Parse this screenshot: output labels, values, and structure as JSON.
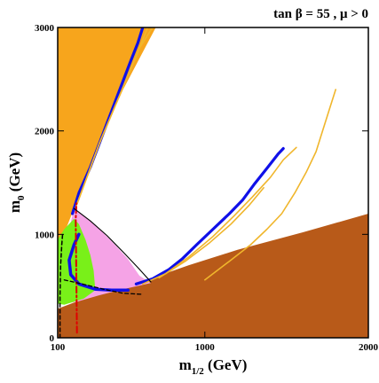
{
  "chart_data": {
    "type": "area",
    "title": "tan β = 55 ,  μ > 0",
    "xlabel": {
      "main": "m",
      "sub": "1/2",
      "unit": " (GeV)"
    },
    "ylabel": {
      "main": "m",
      "sub": "0",
      "unit": " (GeV)"
    },
    "xlim": [
      100,
      2000
    ],
    "ylim": [
      0,
      3000
    ],
    "x_ticks": [
      100,
      1000,
      2000
    ],
    "y_ticks": [
      0,
      1000,
      2000,
      3000
    ],
    "grid": false,
    "legend": "none",
    "colors": {
      "orange": "#f7a51c",
      "brown": "#b85a19",
      "pink": "#f5a3e6",
      "green": "#79f019",
      "blue": "#1010e8",
      "gold": "#f0b62c",
      "red": "#e00000",
      "black": "#000000"
    },
    "regions": [
      {
        "id": "orange",
        "color_key": "orange",
        "points": [
          [
            100,
            3000
          ],
          [
            700,
            3000
          ],
          [
            600,
            2700
          ],
          [
            500,
            2400
          ],
          [
            400,
            2050
          ],
          [
            320,
            1750
          ],
          [
            260,
            1500
          ],
          [
            200,
            1250
          ],
          [
            150,
            1050
          ],
          [
            100,
            900
          ]
        ]
      },
      {
        "id": "brown",
        "color_key": "brown",
        "points": [
          [
            100,
            0
          ],
          [
            2000,
            0
          ],
          [
            2000,
            1200
          ],
          [
            1600,
            1020
          ],
          [
            1200,
            850
          ],
          [
            900,
            700
          ],
          [
            700,
            590
          ],
          [
            500,
            500
          ],
          [
            350,
            420
          ],
          [
            200,
            340
          ],
          [
            100,
            280
          ]
        ]
      },
      {
        "id": "pink",
        "color_key": "pink",
        "points": [
          [
            200,
            1250
          ],
          [
            260,
            1180
          ],
          [
            350,
            1060
          ],
          [
            450,
            900
          ],
          [
            530,
            760
          ],
          [
            600,
            600
          ],
          [
            670,
            530
          ],
          [
            500,
            470
          ],
          [
            350,
            410
          ],
          [
            220,
            350
          ],
          [
            150,
            330
          ],
          [
            140,
            700
          ],
          [
            170,
            1050
          ]
        ]
      },
      {
        "id": "green",
        "color_key": "green",
        "points": [
          [
            100,
            950
          ],
          [
            140,
            1050
          ],
          [
            200,
            1150
          ],
          [
            230,
            1100
          ],
          [
            270,
            950
          ],
          [
            300,
            800
          ],
          [
            320,
            650
          ],
          [
            330,
            460
          ],
          [
            260,
            380
          ],
          [
            200,
            350
          ],
          [
            140,
            320
          ],
          [
            100,
            330
          ]
        ]
      }
    ],
    "lines": [
      {
        "id": "blue-strip-upper",
        "color_key": "blue",
        "width": 3.2,
        "points": [
          [
            190,
            1200
          ],
          [
            230,
            1400
          ],
          [
            300,
            1650
          ],
          [
            360,
            1900
          ],
          [
            420,
            2150
          ],
          [
            480,
            2400
          ],
          [
            540,
            2650
          ],
          [
            590,
            2850
          ],
          [
            620,
            3000
          ]
        ]
      },
      {
        "id": "blue-strip-lower",
        "color_key": "blue",
        "width": 3.2,
        "points": [
          [
            580,
            520
          ],
          [
            680,
            570
          ],
          [
            780,
            660
          ],
          [
            860,
            760
          ],
          [
            950,
            900
          ],
          [
            1050,
            1050
          ],
          [
            1150,
            1200
          ],
          [
            1230,
            1330
          ],
          [
            1300,
            1480
          ],
          [
            1380,
            1640
          ],
          [
            1450,
            1780
          ],
          [
            1480,
            1830
          ]
        ]
      },
      {
        "id": "blue-funnel-inner",
        "color_key": "blue",
        "width": 3.5,
        "points": [
          [
            230,
            1000
          ],
          [
            200,
            900
          ],
          [
            170,
            750
          ],
          [
            180,
            610
          ],
          [
            230,
            520
          ],
          [
            330,
            470
          ],
          [
            430,
            460
          ],
          [
            530,
            460
          ]
        ]
      },
      {
        "id": "gold-upper-a",
        "color_key": "gold",
        "width": 1.6,
        "points": [
          [
            220,
            1300
          ],
          [
            290,
            1600
          ],
          [
            360,
            1900
          ],
          [
            440,
            2200
          ],
          [
            520,
            2500
          ],
          [
            600,
            2800
          ],
          [
            680,
            3000
          ]
        ]
      },
      {
        "id": "gold-upper-b",
        "color_key": "gold",
        "width": 1.6,
        "points": [
          [
            210,
            1260
          ],
          [
            280,
            1560
          ],
          [
            350,
            1860
          ],
          [
            430,
            2160
          ],
          [
            510,
            2460
          ],
          [
            590,
            2760
          ],
          [
            650,
            3000
          ]
        ]
      },
      {
        "id": "gold-lower-a",
        "color_key": "gold",
        "width": 1.6,
        "points": [
          [
            620,
            520
          ],
          [
            760,
            620
          ],
          [
            900,
            780
          ],
          [
            1050,
            980
          ],
          [
            1180,
            1180
          ],
          [
            1290,
            1360
          ],
          [
            1400,
            1550
          ],
          [
            1480,
            1720
          ],
          [
            1560,
            1840
          ]
        ]
      },
      {
        "id": "gold-lower-b",
        "color_key": "gold",
        "width": 1.6,
        "points": [
          [
            1000,
            560
          ],
          [
            1150,
            740
          ],
          [
            1280,
            900
          ],
          [
            1380,
            1050
          ],
          [
            1470,
            1200
          ],
          [
            1550,
            1400
          ],
          [
            1620,
            1600
          ],
          [
            1680,
            1800
          ],
          [
            1720,
            2000
          ],
          [
            1760,
            2200
          ],
          [
            1800,
            2400
          ]
        ]
      },
      {
        "id": "gold-lower-c",
        "color_key": "gold",
        "width": 1.6,
        "points": [
          [
            720,
            580
          ],
          [
            880,
            740
          ],
          [
            1030,
            920
          ],
          [
            1160,
            1100
          ],
          [
            1270,
            1280
          ],
          [
            1360,
            1450
          ]
        ]
      },
      {
        "id": "red-dashdot",
        "color_key": "red",
        "width": 2,
        "dash": "7,3,2,3",
        "points": [
          [
            218,
            50
          ],
          [
            216,
            300
          ],
          [
            214,
            600
          ],
          [
            212,
            900
          ],
          [
            210,
            1150
          ],
          [
            215,
            1300
          ]
        ]
      },
      {
        "id": "black-dashed-vertical",
        "color_key": "black",
        "width": 1.5,
        "dash": "4,3",
        "points": [
          [
            114,
            0
          ],
          [
            114,
            400
          ],
          [
            118,
            700
          ],
          [
            125,
            900
          ],
          [
            130,
            1000
          ]
        ]
      },
      {
        "id": "black-dashed-diagonal",
        "color_key": "black",
        "width": 1.3,
        "dash": "4,3",
        "points": [
          [
            140,
            560
          ],
          [
            250,
            520
          ],
          [
            380,
            470
          ],
          [
            500,
            430
          ],
          [
            620,
            420
          ]
        ]
      },
      {
        "id": "black-boundary",
        "color_key": "black",
        "width": 1.1,
        "points": [
          [
            200,
            1250
          ],
          [
            300,
            1130
          ],
          [
            400,
            990
          ],
          [
            500,
            830
          ],
          [
            590,
            680
          ],
          [
            670,
            540
          ]
        ]
      }
    ]
  }
}
